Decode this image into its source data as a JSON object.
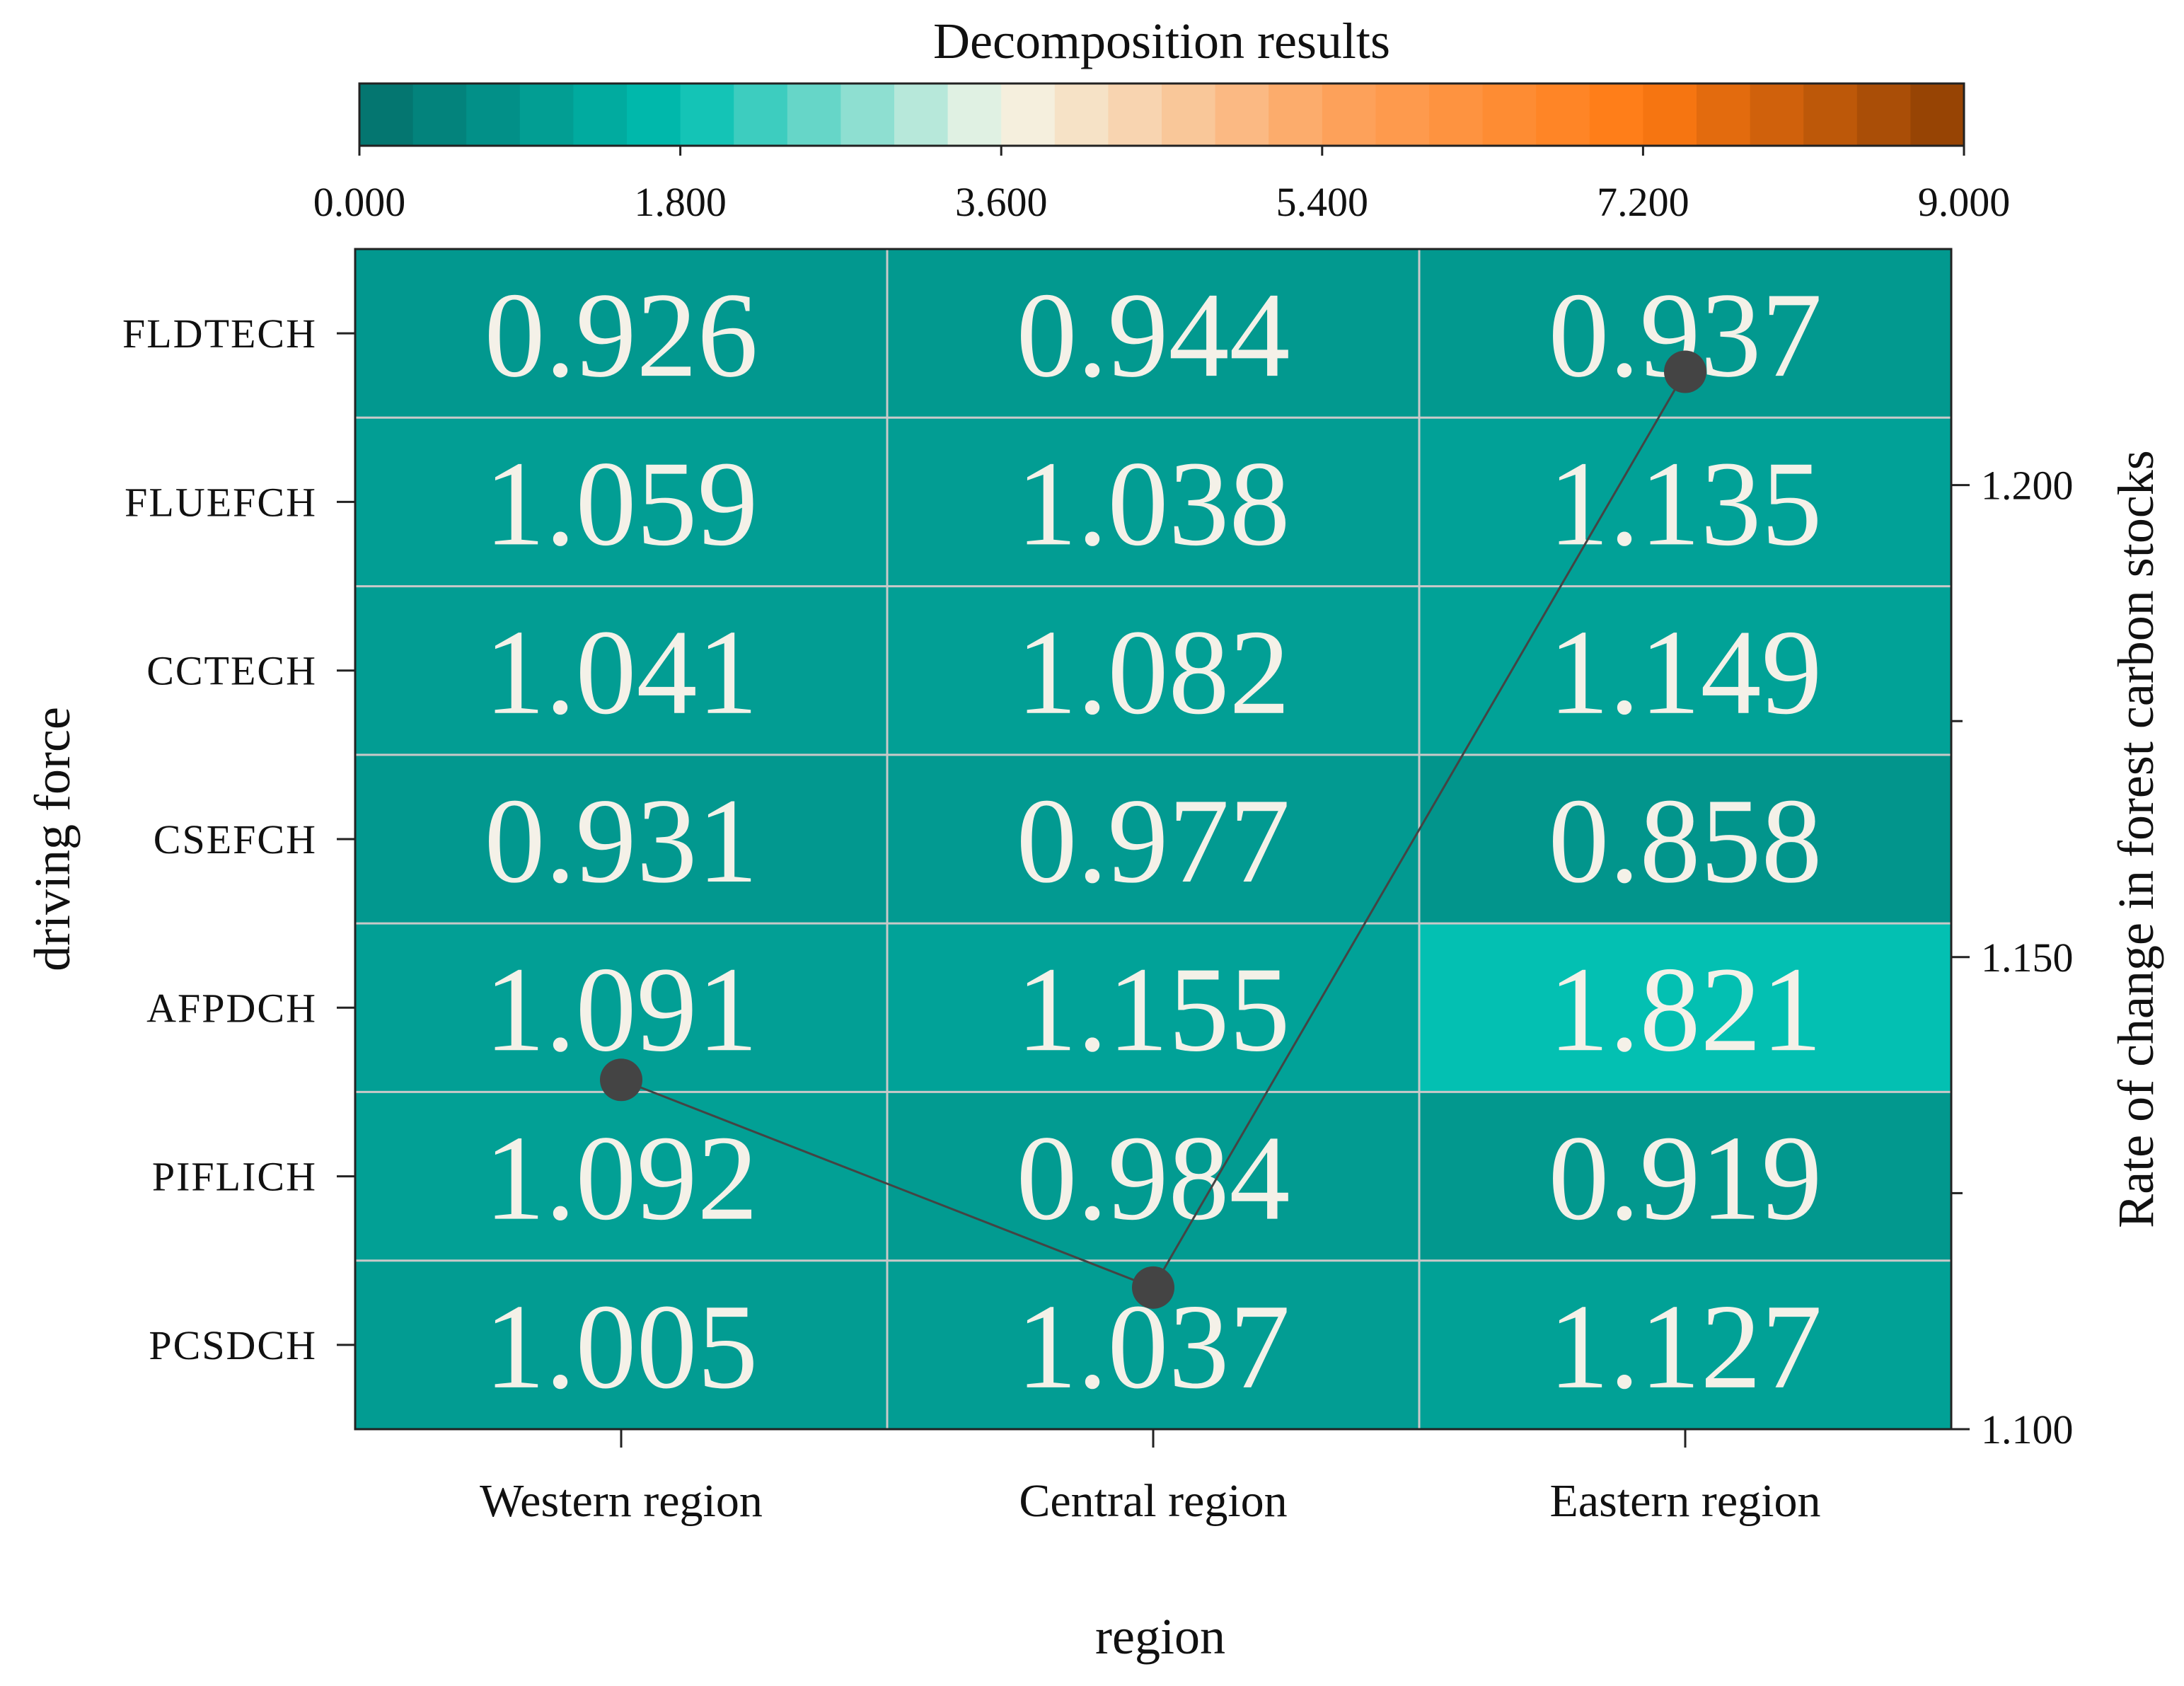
{
  "chart_data": {
    "type": "heatmap",
    "colorbar": {
      "title": "Decomposition results",
      "ticks": [
        "0.000",
        "1.800",
        "3.600",
        "5.400",
        "7.200",
        "9.000"
      ],
      "range": [
        0,
        9
      ],
      "colors": [
        "#046f6a",
        "#00bfb1",
        "#f4f6e8",
        "#fda561",
        "#ff7a12",
        "#8d3f03"
      ]
    },
    "rows": [
      "FLDTECH",
      "FLUEFCH",
      "CCTECH",
      "CSEFCH",
      "AFPDCH",
      "PIFLICH",
      "PCSDCH"
    ],
    "columns": [
      "Western region",
      "Central region",
      "Eastern region"
    ],
    "values": [
      [
        0.926,
        0.944,
        0.937
      ],
      [
        1.059,
        1.038,
        1.135
      ],
      [
        1.041,
        1.082,
        1.149
      ],
      [
        0.931,
        0.977,
        0.858
      ],
      [
        1.091,
        1.155,
        1.821
      ],
      [
        1.092,
        0.984,
        0.919
      ],
      [
        1.005,
        1.037,
        1.127
      ]
    ],
    "cell_labels": [
      [
        "0.926",
        "0.944",
        "0.937"
      ],
      [
        "1.059",
        "1.038",
        "1.135"
      ],
      [
        "1.041",
        "1.082",
        "1.149"
      ],
      [
        "0.931",
        "0.977",
        "0.858"
      ],
      [
        "1.091",
        "1.155",
        "1.821"
      ],
      [
        "1.092",
        "0.984",
        "0.919"
      ],
      [
        "1.005",
        "1.037",
        "1.127"
      ]
    ],
    "xlabel": "region",
    "ylabel": "driving force",
    "secondary_axis": {
      "label": "Rate of change in forest carbon stocks",
      "range": [
        1.1,
        1.225
      ],
      "tick_values": [
        1.1,
        1.15,
        1.2
      ],
      "tick_labels": [
        "1.100",
        "1.150",
        "1.200"
      ],
      "minor_ticks": [
        1.125,
        1.175
      ]
    },
    "line_series": {
      "name": "Rate of change in forest carbon stocks",
      "x": [
        "Western region",
        "Central region",
        "Eastern region"
      ],
      "values": [
        1.137,
        1.115,
        1.212
      ],
      "color": "#444444"
    }
  }
}
